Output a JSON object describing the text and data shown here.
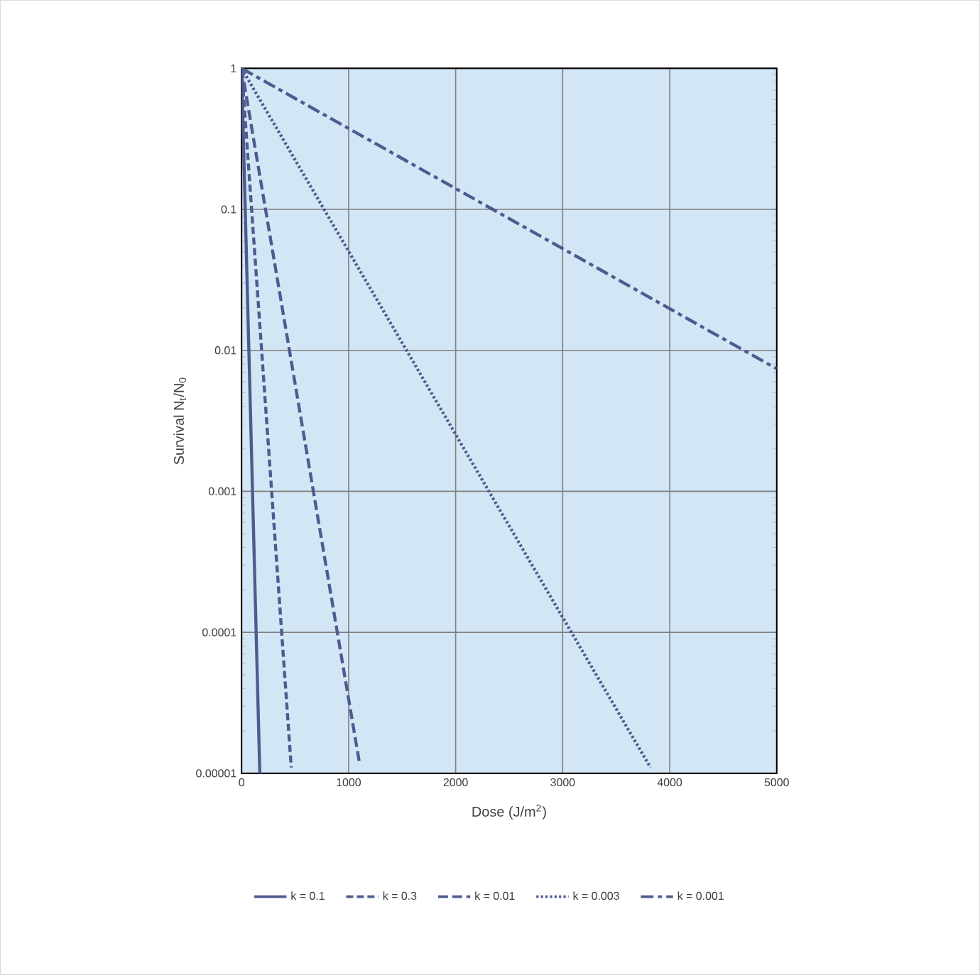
{
  "chart_data": {
    "type": "line",
    "xlabel": "Dose (J/m$^{2}$)",
    "ylabel": "Survival N$_{t}$/N$_{0}$",
    "log": "y",
    "xlim": [
      0,
      5000
    ],
    "xticks": [
      0,
      1000,
      2000,
      3000,
      4000,
      5000
    ],
    "ylim": [
      1e-05,
      1
    ],
    "yticks": [
      {
        "value": 1e-05,
        "label": "0.00001"
      },
      {
        "value": 0.0001,
        "label": "0.0001"
      },
      {
        "value": 0.001,
        "label": "0.001"
      },
      {
        "value": 0.01,
        "label": "0.01"
      },
      {
        "value": 0.1,
        "label": "0.1"
      },
      {
        "value": 1,
        "label": "1"
      }
    ],
    "grid": true,
    "legend": "bottom",
    "marker": "none",
    "series": [
      {
        "name": "k = 0.1",
        "color": "#4d5b8f",
        "line_style": "solid",
        "x": [
          0,
          170
        ],
        "values": [
          1,
          1e-05
        ]
      },
      {
        "name": "k = 0.3",
        "color": "#4d5b8f",
        "line_style": "dashed",
        "x": [
          0,
          464
        ],
        "values": [
          1,
          1.1e-05
        ]
      },
      {
        "name": "k = 0.01",
        "color": "#4d5b8f",
        "line_style": "longdashed",
        "x": [
          0,
          1100
        ],
        "values": [
          1,
          1.2e-05
        ]
      },
      {
        "name": "k = 0.003",
        "color": "#4d5b8f",
        "line_style": "dotted",
        "x": [
          0,
          3820
        ],
        "values": [
          1,
          1.1e-05
        ]
      },
      {
        "name": "k = 0.001",
        "color": "#4d5b8f",
        "line_style": "dashdot",
        "x": [
          0,
          5000
        ],
        "values": [
          1,
          0.0074
        ]
      }
    ]
  }
}
